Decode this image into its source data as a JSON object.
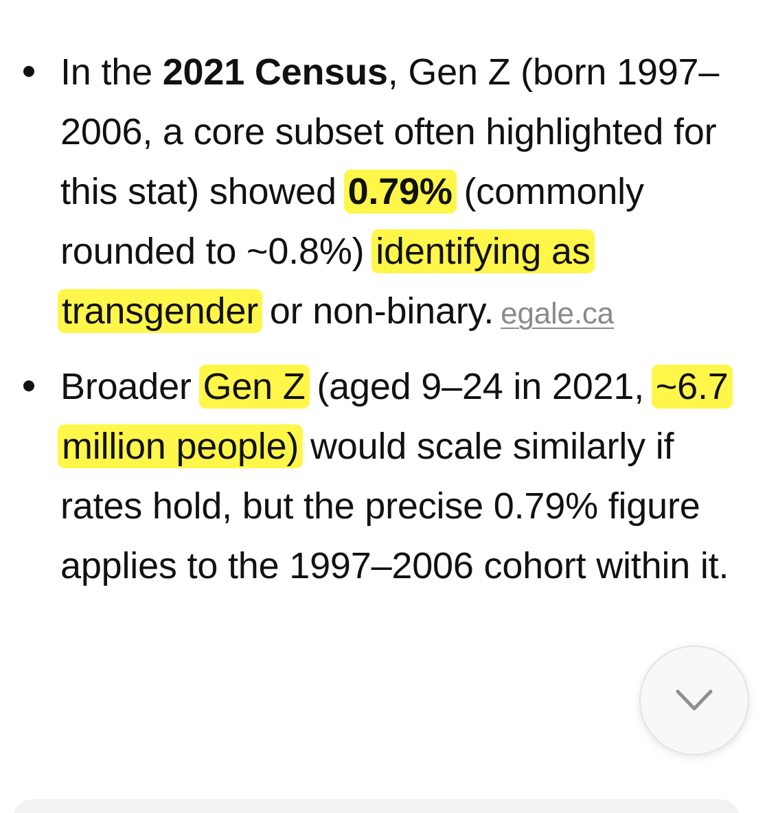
{
  "colors": {
    "highlight": "#fff64a",
    "text": "#111111",
    "link": "#8a8a8a",
    "bullet": "#111111"
  },
  "bullets": [
    {
      "pre": "In the ",
      "bold1": "2021 Census",
      "mid1": ", Gen Z (born 1997–2006, a core subset often highlighted for this stat) showed ",
      "bold2": "0.79%",
      "mid2": " (commonly rounded to ~0.8%) ",
      "highlight": "identifying as transgender",
      "post": " or non-binary.",
      "source": "egale.ca"
    },
    {
      "pre": "Broader ",
      "highlight1": "Gen Z",
      "mid1": " (aged 9–24 in 2021, ",
      "highlight2": "~6.7 million people)",
      "post": " would scale similarly if rates hold, but the precise 0.79% figure applies to the 1997–2006 cohort within it."
    }
  ],
  "scroll_button": {
    "icon": "chevron-down-icon"
  }
}
